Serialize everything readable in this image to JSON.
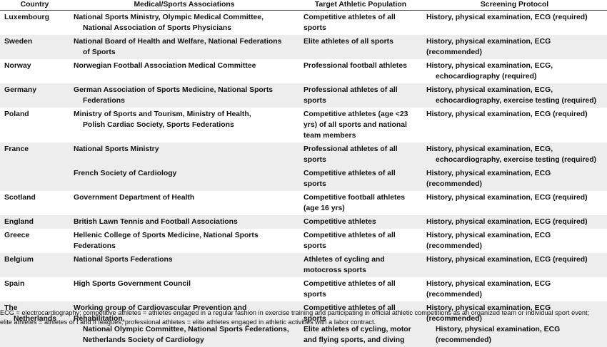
{
  "headers": [
    "Country",
    "Medical/Sports Associations",
    "Target Athletic Population",
    "Screening Protocol"
  ],
  "rows": [
    {
      "band": false,
      "country": [
        "Luxembourg"
      ],
      "assoc": [
        "National Sports Ministry, Olympic Medical Committee,",
        "National Association of Sports Physicians"
      ],
      "target": [
        "Competitive athletes of all sports"
      ],
      "protocol": [
        "History, physical examination, ECG (required)"
      ]
    },
    {
      "band": true,
      "country": [
        "Sweden"
      ],
      "assoc": [
        "National Board of Health and Welfare, National Federations",
        "of Sports"
      ],
      "target": [
        "Elite athletes of all sports"
      ],
      "protocol": [
        "History, physical examination, ECG (recommended)"
      ]
    },
    {
      "band": false,
      "country": [
        "Norway"
      ],
      "assoc": [
        "Norwegian Football Association Medical Committee"
      ],
      "target": [
        "Professional football athletes"
      ],
      "protocol": [
        "History, physical examination, ECG,",
        "echocardiography (required)"
      ]
    },
    {
      "band": true,
      "country": [
        "Germany"
      ],
      "assoc": [
        "German Association of Sports Medicine, National Sports",
        "Federations"
      ],
      "target": [
        "Professional athletes of all sports"
      ],
      "protocol": [
        "History, physical examination, ECG,",
        "echocardiography, exercise testing (required)"
      ]
    },
    {
      "band": false,
      "country": [
        "Poland"
      ],
      "assoc": [
        "Ministry of Sports and Tourism, Ministry of Health,",
        "Polish Cardiac Society, Sports Federations"
      ],
      "target": [
        "Competitive athletes (age <23",
        "yrs) of all sports and national",
        "team members"
      ],
      "protocol": [
        "History, physical examination, ECG (required)"
      ]
    },
    {
      "band": true,
      "country": [
        "France"
      ],
      "assoc": [
        "National Sports Ministry"
      ],
      "target": [
        "Professional athletes of all sports"
      ],
      "protocol": [
        "History, physical examination, ECG,",
        "echocardiography, exercise testing (required)"
      ]
    },
    {
      "band": true,
      "country": [],
      "assoc": [
        "French Society of Cardiology"
      ],
      "target": [
        "Competitive athletes of all sports"
      ],
      "protocol": [
        "History, physical examination, ECG (recommended)"
      ]
    },
    {
      "band": false,
      "country": [
        "Scotland"
      ],
      "assoc": [
        "Government Department of Health"
      ],
      "target": [
        "Competitive football athletes",
        "(age 16 yrs)"
      ],
      "protocol": [
        "History, physical examination, ECG (required)"
      ]
    },
    {
      "band": true,
      "country": [
        "England"
      ],
      "assoc": [
        "British Lawn Tennis and Football Associations"
      ],
      "target": [
        "Competitive athletes"
      ],
      "protocol": [
        "History, physical examination, ECG (required)"
      ]
    },
    {
      "band": false,
      "country": [
        "Greece"
      ],
      "assoc": [
        "Hellenic College of Sports Medicine, National Sports Federations"
      ],
      "target": [
        "Competitive athletes of all sports"
      ],
      "protocol": [
        "History, physical examination, ECG (recommended)"
      ]
    },
    {
      "band": true,
      "country": [
        "Belgium"
      ],
      "assoc": [
        "National Sports Federations"
      ],
      "target": [
        "Athletes of cycling and",
        "motocross sports"
      ],
      "protocol": [
        "History, physical examination, ECG (required)"
      ]
    },
    {
      "band": false,
      "country": [
        "Spain"
      ],
      "assoc": [
        "High Sports Government Council"
      ],
      "target": [
        "Competitive athletes of all sports"
      ],
      "protocol": [
        "History, physical examination, ECG (recommended)"
      ]
    },
    {
      "band": true,
      "country": [
        "The",
        "Netherlands"
      ],
      "assoc": [
        "Working group of Cardiovascular Prevention and Rehabilitation,",
        "National Olympic Committee, National Sports Federations,",
        "Netherlands Society of Cardiology"
      ],
      "target": [
        "Competitive athletes of all sports",
        "Elite athletes of cycling, motor",
        "and flying sports, and diving"
      ],
      "protocol": [
        "History, physical examination, ECG (recommended)",
        "History, physical examination, ECG (recommended)"
      ]
    }
  ],
  "footnote": [
    "ECG = electrocardiography; competitive athletes = athletes engaged in a regular fashion in exercise training and participating in official athletic competitions as an organized team or individual sport event;",
    "elite athletes = athletes of I and II leagues; professional athletes = elite athletes engaged in athletic activities with a labor contract."
  ]
}
